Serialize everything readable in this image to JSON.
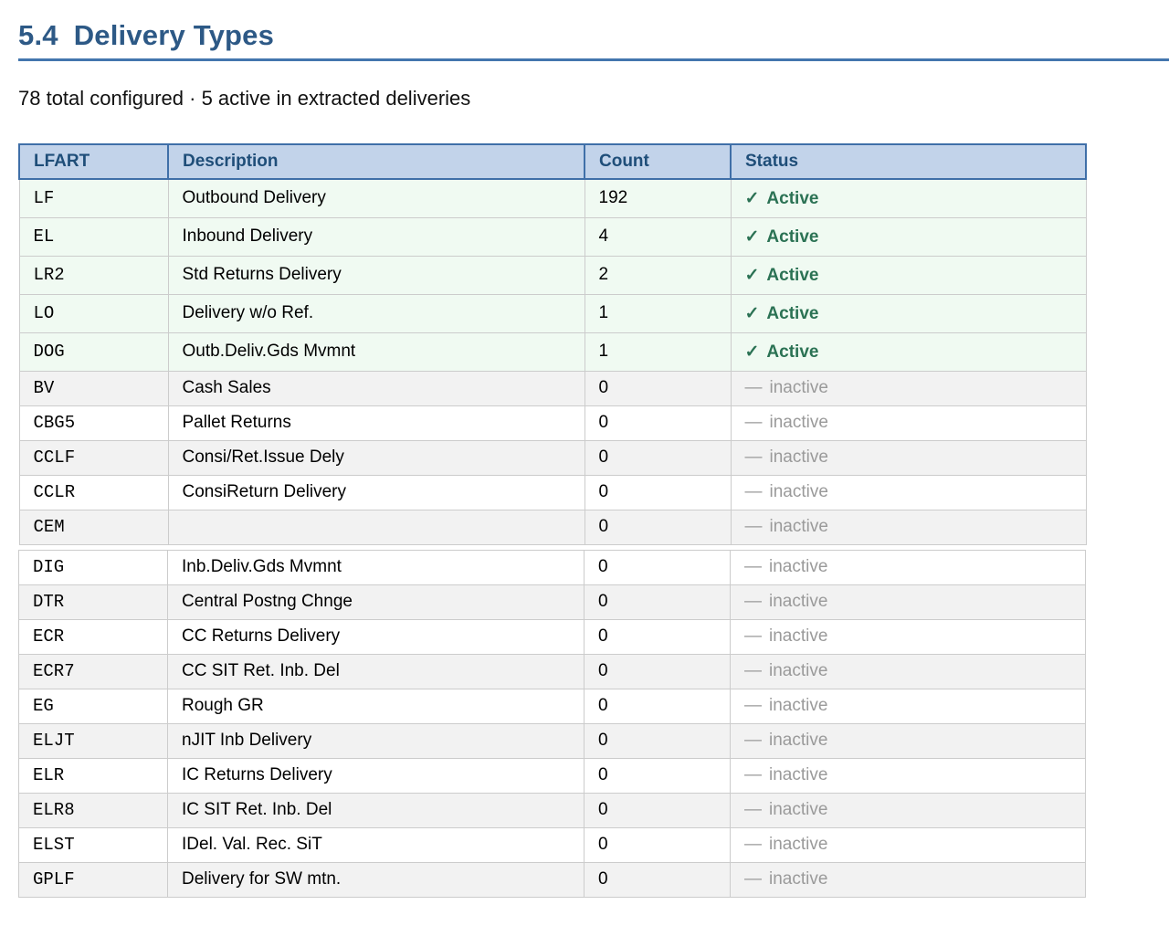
{
  "page": {
    "section_number": "5.4",
    "section_title": "Delivery Types",
    "summary": "78 total configured · 5 active in extracted deliveries"
  },
  "table": {
    "columns": [
      "LFART",
      "Description",
      "Count",
      "Status"
    ],
    "active_status": {
      "icon": "✓",
      "label": "Active"
    },
    "inactive_status": {
      "icon": "—",
      "label": "inactive"
    },
    "split_after_index": 9,
    "rows": [
      {
        "lfart": "LF",
        "description": "Outbound Delivery",
        "count": "192",
        "status": "active"
      },
      {
        "lfart": "EL",
        "description": "Inbound Delivery",
        "count": "4",
        "status": "active"
      },
      {
        "lfart": "LR2",
        "description": "Std Returns Delivery",
        "count": "2",
        "status": "active"
      },
      {
        "lfart": "LO",
        "description": "Delivery w/o Ref.",
        "count": "1",
        "status": "active"
      },
      {
        "lfart": "DOG",
        "description": "Outb.Deliv.Gds Mvmnt",
        "count": "1",
        "status": "active"
      },
      {
        "lfart": "BV",
        "description": "Cash Sales",
        "count": "0",
        "status": "inactive"
      },
      {
        "lfart": "CBG5",
        "description": "Pallet Returns",
        "count": "0",
        "status": "inactive"
      },
      {
        "lfart": "CCLF",
        "description": "Consi/Ret.Issue Dely",
        "count": "0",
        "status": "inactive"
      },
      {
        "lfart": "CCLR",
        "description": "ConsiReturn Delivery",
        "count": "0",
        "status": "inactive"
      },
      {
        "lfart": "CEM",
        "description": "",
        "count": "0",
        "status": "inactive"
      },
      {
        "lfart": "DIG",
        "description": "Inb.Deliv.Gds Mvmnt",
        "count": "0",
        "status": "inactive"
      },
      {
        "lfart": "DTR",
        "description": "Central Postng Chnge",
        "count": "0",
        "status": "inactive"
      },
      {
        "lfart": "ECR",
        "description": "CC Returns Delivery",
        "count": "0",
        "status": "inactive"
      },
      {
        "lfart": "ECR7",
        "description": "CC SIT Ret. Inb. Del",
        "count": "0",
        "status": "inactive"
      },
      {
        "lfart": "EG",
        "description": "Rough GR",
        "count": "0",
        "status": "inactive"
      },
      {
        "lfart": "ELJT",
        "description": "nJIT Inb Delivery",
        "count": "0",
        "status": "inactive"
      },
      {
        "lfart": "ELR",
        "description": "IC Returns Delivery",
        "count": "0",
        "status": "inactive"
      },
      {
        "lfart": "ELR8",
        "description": "IC SIT Ret. Inb. Del",
        "count": "0",
        "status": "inactive"
      },
      {
        "lfart": "ELST",
        "description": "IDel. Val. Rec. SiT",
        "count": "0",
        "status": "inactive"
      },
      {
        "lfart": "GPLF",
        "description": "Delivery for SW mtn.",
        "count": "0",
        "status": "inactive"
      }
    ]
  },
  "colors": {
    "heading": "#2d5986",
    "rule": "#4376ae",
    "header_bg": "#c2d3ea",
    "header_border": "#3f6fa8",
    "header_text": "#1f4e79",
    "active_row_bg": "#f0faf2",
    "active_text": "#2b7254",
    "inactive_row_bg": "#f2f2f2",
    "inactive_text": "#9a9a9a",
    "body_border": "#cccccc"
  }
}
